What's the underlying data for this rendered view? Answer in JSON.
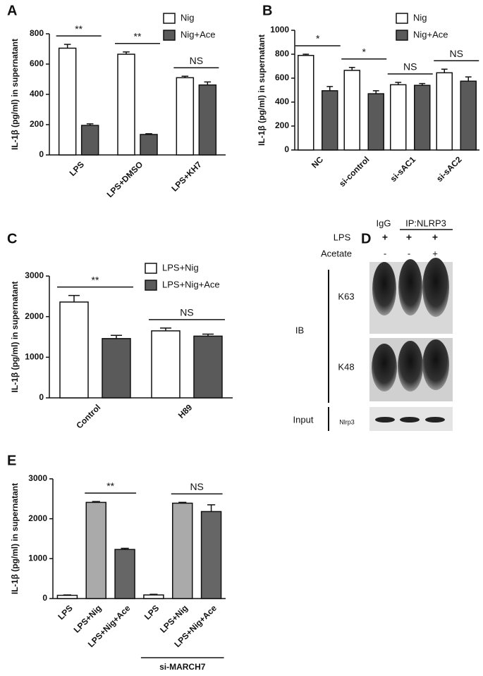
{
  "chart_data": [
    {
      "type": "grouped_bar",
      "panel": "A",
      "y_label": "IL-1β (pg/ml) in supernatant",
      "categories": [
        "LPS",
        "LPS+DMSO",
        "LPS+KH7"
      ],
      "series": [
        {
          "name": "Nig",
          "color": "#ffffff",
          "values": [
            705,
            665,
            510
          ],
          "errors": [
            25,
            15,
            10
          ]
        },
        {
          "name": "Nig+Ace",
          "color": "#5a5a5a",
          "values": [
            195,
            135,
            462
          ],
          "errors": [
            10,
            5,
            20
          ]
        }
      ],
      "ylim": [
        0,
        800
      ],
      "yticks": [
        0,
        200,
        400,
        600,
        800
      ],
      "annotations": [
        {
          "text": "**",
          "category": 0
        },
        {
          "text": "**",
          "category": 1
        },
        {
          "text": "NS",
          "category": 2
        }
      ]
    },
    {
      "type": "grouped_bar",
      "panel": "B",
      "y_label": "IL-1β (pg/ml) in supernatant",
      "categories": [
        "NC",
        "si-control",
        "si-sAC1",
        "si-sAC2"
      ],
      "series": [
        {
          "name": "Nig",
          "color": "#ffffff",
          "values": [
            790,
            665,
            545,
            645
          ],
          "errors": [
            10,
            25,
            20,
            30
          ]
        },
        {
          "name": "Nig+Ace",
          "color": "#5a5a5a",
          "values": [
            495,
            470,
            540,
            575
          ],
          "errors": [
            35,
            25,
            15,
            35
          ]
        }
      ],
      "ylim": [
        0,
        1000
      ],
      "yticks": [
        0,
        200,
        400,
        600,
        800,
        1000
      ],
      "annotations": [
        {
          "text": "*",
          "category": 0
        },
        {
          "text": "*",
          "category": 1
        },
        {
          "text": "NS",
          "category": 2
        },
        {
          "text": "NS",
          "category": 3
        }
      ]
    },
    {
      "type": "grouped_bar",
      "panel": "C",
      "y_label": "IL-1β (pg/ml) in supernatant",
      "categories": [
        "Control",
        "H89"
      ],
      "series": [
        {
          "name": "LPS+Nig",
          "color": "#ffffff",
          "values": [
            2360,
            1650
          ],
          "errors": [
            160,
            70
          ]
        },
        {
          "name": "LPS+Nig+Ace",
          "color": "#5a5a5a",
          "values": [
            1460,
            1520
          ],
          "errors": [
            80,
            50
          ]
        }
      ],
      "ylim": [
        0,
        3000
      ],
      "yticks": [
        0,
        1000,
        2000,
        3000
      ],
      "annotations": [
        {
          "text": "**",
          "category": 0
        },
        {
          "text": "NS",
          "category": 1
        }
      ]
    },
    {
      "type": "bar",
      "panel": "E",
      "y_label": "IL-1β (pg/ml) in supernatant",
      "categories": [
        "LPS",
        "LPS+Nig",
        "LPS+Nig+Ace",
        "LPS",
        "LPS+Nig",
        "LPS+Nig+Ace"
      ],
      "values": [
        80,
        2410,
        1230,
        90,
        2390,
        2180
      ],
      "errors": [
        10,
        20,
        30,
        15,
        20,
        170
      ],
      "colors": [
        "#ffffff",
        "#aaaaaa",
        "#666666",
        "#ffffff",
        "#aaaaaa",
        "#666666"
      ],
      "ylim": [
        0,
        3000
      ],
      "yticks": [
        0,
        1000,
        2000,
        3000
      ],
      "annotations": [
        {
          "text": "**",
          "bars": [
            1,
            2
          ]
        },
        {
          "text": "NS",
          "bars": [
            4,
            5
          ]
        }
      ],
      "group_label": {
        "text": "si-MARCH7",
        "bars": [
          3,
          5
        ]
      }
    }
  ],
  "panel_d": {
    "panel": "D",
    "ip_labels": [
      "IgG",
      "IP:NLRP3"
    ],
    "rows": [
      {
        "label": "LPS",
        "signs": [
          "+",
          "+",
          "+"
        ]
      },
      {
        "label": "Acetate",
        "signs": [
          "-",
          "-",
          "+"
        ]
      }
    ],
    "ib_label": "IB",
    "blots": [
      "K63",
      "K48"
    ],
    "input_label": "Input",
    "input_blot": "Nlrp3"
  }
}
